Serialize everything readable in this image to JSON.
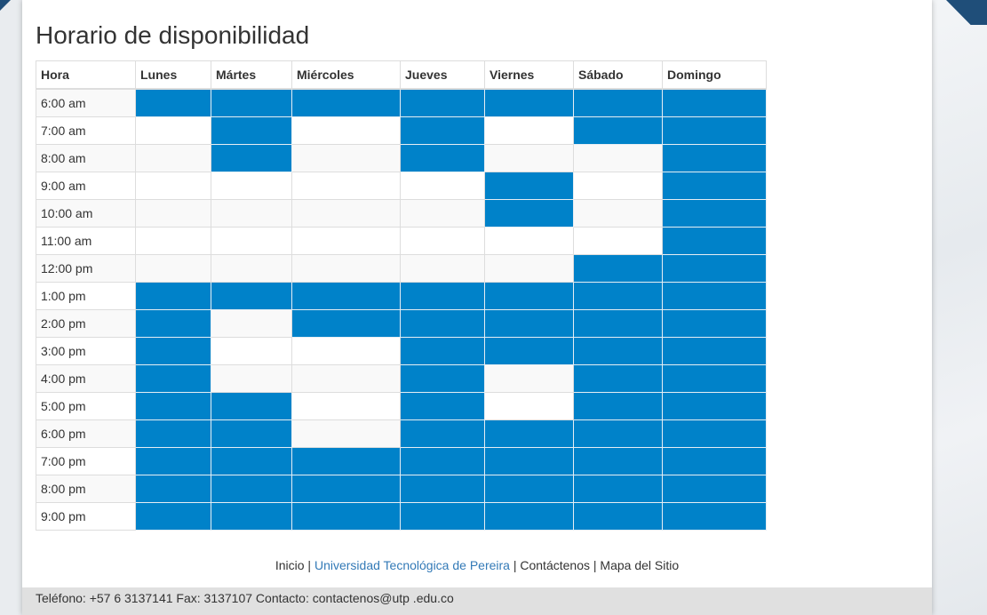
{
  "page": {
    "title": "Horario de disponibilidad"
  },
  "schedule": {
    "headers": [
      "Hora",
      "Lunes",
      "Mártes",
      "Miércoles",
      "Jueves",
      "Viernes",
      "Sábado",
      "Domingo"
    ],
    "available_color": "#0082c9",
    "rows": [
      {
        "time": "6:00 am",
        "slots": [
          1,
          1,
          1,
          1,
          1,
          1,
          1
        ]
      },
      {
        "time": "7:00 am",
        "slots": [
          0,
          1,
          0,
          1,
          0,
          1,
          1
        ]
      },
      {
        "time": "8:00 am",
        "slots": [
          0,
          1,
          0,
          1,
          0,
          0,
          1
        ]
      },
      {
        "time": "9:00 am",
        "slots": [
          0,
          0,
          0,
          0,
          1,
          0,
          1
        ]
      },
      {
        "time": "10:00 am",
        "slots": [
          0,
          0,
          0,
          0,
          1,
          0,
          1
        ]
      },
      {
        "time": "11:00 am",
        "slots": [
          0,
          0,
          0,
          0,
          0,
          0,
          1
        ]
      },
      {
        "time": "12:00 pm",
        "slots": [
          0,
          0,
          0,
          0,
          0,
          1,
          1
        ]
      },
      {
        "time": "1:00 pm",
        "slots": [
          1,
          1,
          1,
          1,
          1,
          1,
          1
        ]
      },
      {
        "time": "2:00 pm",
        "slots": [
          1,
          0,
          1,
          1,
          1,
          1,
          1
        ]
      },
      {
        "time": "3:00 pm",
        "slots": [
          1,
          0,
          0,
          1,
          1,
          1,
          1
        ]
      },
      {
        "time": "4:00 pm",
        "slots": [
          1,
          0,
          0,
          1,
          0,
          1,
          1
        ]
      },
      {
        "time": "5:00 pm",
        "slots": [
          1,
          1,
          0,
          1,
          0,
          1,
          1
        ]
      },
      {
        "time": "6:00 pm",
        "slots": [
          1,
          1,
          0,
          1,
          1,
          1,
          1
        ]
      },
      {
        "time": "7:00 pm",
        "slots": [
          1,
          1,
          1,
          1,
          1,
          1,
          1
        ]
      },
      {
        "time": "8:00 pm",
        "slots": [
          1,
          1,
          1,
          1,
          1,
          1,
          1
        ]
      },
      {
        "time": "9:00 pm",
        "slots": [
          1,
          1,
          1,
          1,
          1,
          1,
          1
        ]
      }
    ]
  },
  "footer": {
    "links": [
      {
        "label": "Inicio",
        "accent": false
      },
      {
        "label": "Universidad Tecnológica de Pereira",
        "accent": true
      },
      {
        "label": "Contáctenos",
        "accent": false
      },
      {
        "label": "Mapa del Sitio",
        "accent": false
      }
    ],
    "separator": " | ",
    "contact_text": "Teléfono: +57 6 3137141 Fax: 3137107 Contacto: ",
    "contact_email": "contactenos@utp .edu.co"
  }
}
